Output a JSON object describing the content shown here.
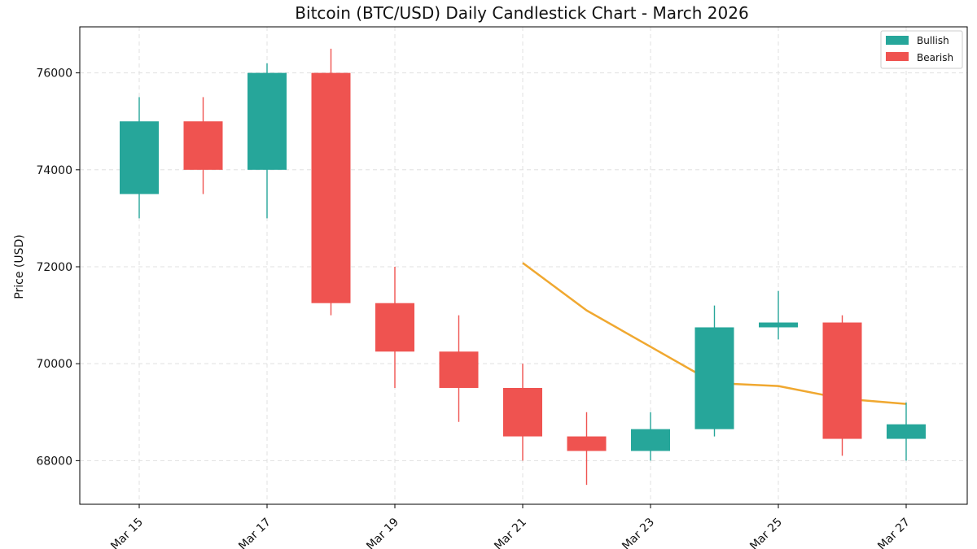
{
  "chart_data": {
    "type": "candlestick",
    "title": "Bitcoin (BTC/USD) Daily Candlestick Chart - March 2026",
    "xlabel": "",
    "ylabel": "Price (USD)",
    "ylim": [
      67100,
      76950
    ],
    "yticks": [
      68000,
      70000,
      72000,
      74000,
      76000
    ],
    "grid": true,
    "legend_position": "top-right",
    "colors": {
      "bullish": "#26a69a",
      "bearish": "#ef5350",
      "moving_average": "#f0a830",
      "grid": "#e0e0e0"
    },
    "legend": [
      "Bullish",
      "Bearish"
    ],
    "categories": [
      "Mar 15",
      "Mar 16",
      "Mar 17",
      "Mar 18",
      "Mar 19",
      "Mar 20",
      "Mar 21",
      "Mar 22",
      "Mar 23",
      "Mar 24",
      "Mar 25",
      "Mar 26",
      "Mar 27"
    ],
    "x_tick_labels": [
      "Mar 15",
      "Mar 17",
      "Mar 19",
      "Mar 21",
      "Mar 23",
      "Mar 25",
      "Mar 27"
    ],
    "candles": [
      {
        "date": "Mar 15",
        "open": 73500,
        "high": 75500,
        "low": 73000,
        "close": 75000
      },
      {
        "date": "Mar 16",
        "open": 75000,
        "high": 75500,
        "low": 73500,
        "close": 74000
      },
      {
        "date": "Mar 17",
        "open": 74000,
        "high": 76200,
        "low": 73000,
        "close": 76000
      },
      {
        "date": "Mar 18",
        "open": 76000,
        "high": 76500,
        "low": 71000,
        "close": 71250
      },
      {
        "date": "Mar 19",
        "open": 71250,
        "high": 72000,
        "low": 69500,
        "close": 70250
      },
      {
        "date": "Mar 20",
        "open": 70250,
        "high": 71000,
        "low": 68800,
        "close": 69500
      },
      {
        "date": "Mar 21",
        "open": 69500,
        "high": 70000,
        "low": 68000,
        "close": 68500
      },
      {
        "date": "Mar 22",
        "open": 68500,
        "high": 69000,
        "low": 67500,
        "close": 68200
      },
      {
        "date": "Mar 23",
        "open": 68200,
        "high": 69000,
        "low": 68000,
        "close": 68650
      },
      {
        "date": "Mar 24",
        "open": 68650,
        "high": 71200,
        "low": 68500,
        "close": 70750
      },
      {
        "date": "Mar 25",
        "open": 70750,
        "high": 71500,
        "low": 70500,
        "close": 70850
      },
      {
        "date": "Mar 26",
        "open": 70850,
        "high": 71000,
        "low": 68100,
        "close": 68450
      },
      {
        "date": "Mar 27",
        "open": 68450,
        "high": 69200,
        "low": 68000,
        "close": 68750
      }
    ],
    "moving_average": {
      "start_date": "Mar 21",
      "values": [
        72080,
        71100,
        70350,
        69600,
        69540,
        69280,
        69170
      ]
    }
  }
}
